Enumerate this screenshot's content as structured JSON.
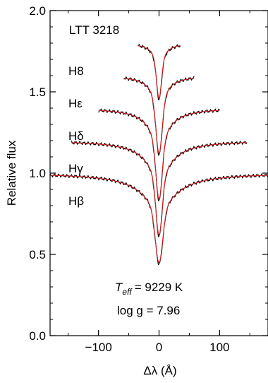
{
  "chart_data": {
    "type": "line",
    "title": "",
    "star_label": "LTT 3218",
    "xlabel": "Δλ (Å)",
    "ylabel": "Relative flux",
    "xlim": [
      -180,
      180
    ],
    "ylim": [
      0.0,
      2.0
    ],
    "x_ticks": [
      -100,
      0,
      100
    ],
    "x_tick_labels": [
      "−100",
      "0",
      "100"
    ],
    "y_ticks": [
      0.0,
      0.5,
      1.0,
      1.5,
      2.0
    ],
    "y_tick_labels": [
      "0.0",
      "0.5",
      "1.0",
      "1.5",
      "2.0"
    ],
    "grid": false,
    "annotations": {
      "teff_symbol": "T",
      "teff_subscript": "eff",
      "teff_value": "= 9229 K",
      "logg": "log g = 7.96"
    },
    "series": [
      {
        "name": "Hβ",
        "offset": 1.0,
        "depth": 0.55,
        "half_width": 180,
        "core_width": 6,
        "wing_width": 30
      },
      {
        "name": "Hγ",
        "offset": 1.2,
        "depth": 0.58,
        "half_width": 145,
        "core_width": 5,
        "wing_width": 22
      },
      {
        "name": "Hδ",
        "offset": 1.4,
        "depth": 0.56,
        "half_width": 100,
        "core_width": 5,
        "wing_width": 17
      },
      {
        "name": "Hε",
        "offset": 1.6,
        "depth": 0.48,
        "half_width": 58,
        "core_width": 5,
        "wing_width": 12
      },
      {
        "name": "H8",
        "offset": 1.8,
        "depth": 0.34,
        "half_width": 35,
        "core_width": 4,
        "wing_width": 9
      }
    ],
    "colors": {
      "observed": "#000000",
      "model": "#d62020"
    }
  }
}
